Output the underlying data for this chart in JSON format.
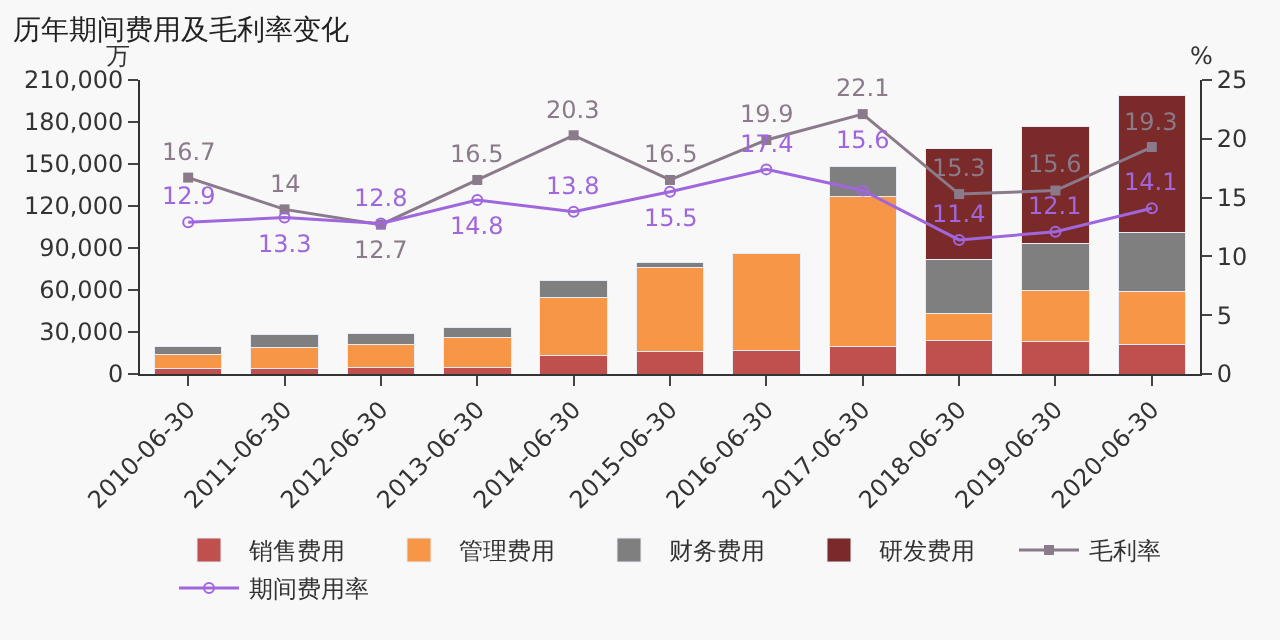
{
  "chart_data": {
    "type": "bar",
    "title": "历年期间费用及毛利率变化",
    "ylabel": "万",
    "y2label": "%",
    "categories": [
      "2010-06-30",
      "2011-06-30",
      "2012-06-30",
      "2013-06-30",
      "2014-06-30",
      "2015-06-30",
      "2016-06-30",
      "2017-06-30",
      "2018-06-30",
      "2019-06-30",
      "2020-06-30"
    ],
    "stacked": true,
    "series": [
      {
        "name": "销售费用",
        "color": "#c0504d",
        "values": [
          4000,
          4000,
          5000,
          5000,
          13000,
          16000,
          17000,
          20000,
          24000,
          23000,
          21000
        ]
      },
      {
        "name": "管理费用",
        "color": "#f79646",
        "values": [
          10000,
          15000,
          16000,
          21000,
          42000,
          60000,
          69000,
          107000,
          19000,
          37000,
          38000
        ]
      },
      {
        "name": "财务费用",
        "color": "#7f7f7f",
        "values": [
          6000,
          9000,
          8000,
          7000,
          12000,
          4000,
          null,
          21000,
          39000,
          33000,
          42000
        ]
      },
      {
        "name": "研发费用",
        "color": "#7b2a2a",
        "values": [
          null,
          null,
          null,
          null,
          null,
          null,
          null,
          null,
          79000,
          84000,
          98000
        ]
      },
      {
        "name": "毛利率",
        "type": "line",
        "axis": "y2",
        "color": "#8a7a8a",
        "marker": "square",
        "data_labels": true,
        "values": [
          16.7,
          14,
          12.7,
          16.5,
          20.3,
          16.5,
          19.9,
          22.1,
          15.3,
          15.6,
          19.3
        ]
      },
      {
        "name": "期间费用率",
        "type": "line",
        "axis": "y2",
        "color": "#a066dd",
        "marker": "circle",
        "data_labels": true,
        "values": [
          12.9,
          13.3,
          12.8,
          14.8,
          13.8,
          15.5,
          17.4,
          15.6,
          11.4,
          12.1,
          14.1
        ]
      }
    ],
    "ylim": [
      0,
      210000
    ],
    "yticks": [
      0,
      {
        "value": 30000,
        "label": "30,000"
      },
      {
        "value": 60000,
        "label": "60,000"
      },
      {
        "value": 90000,
        "label": "90,000"
      },
      {
        "value": 120000,
        "label": "120,000"
      },
      {
        "value": 150000,
        "label": "150,000"
      },
      {
        "value": 180000,
        "label": "180,000"
      },
      {
        "value": 210000,
        "label": "210,000"
      }
    ],
    "y2lim": [
      0,
      25
    ],
    "y2ticks": [
      0,
      5,
      10,
      15,
      20,
      25
    ],
    "grid": false,
    "legend": "bottom"
  }
}
